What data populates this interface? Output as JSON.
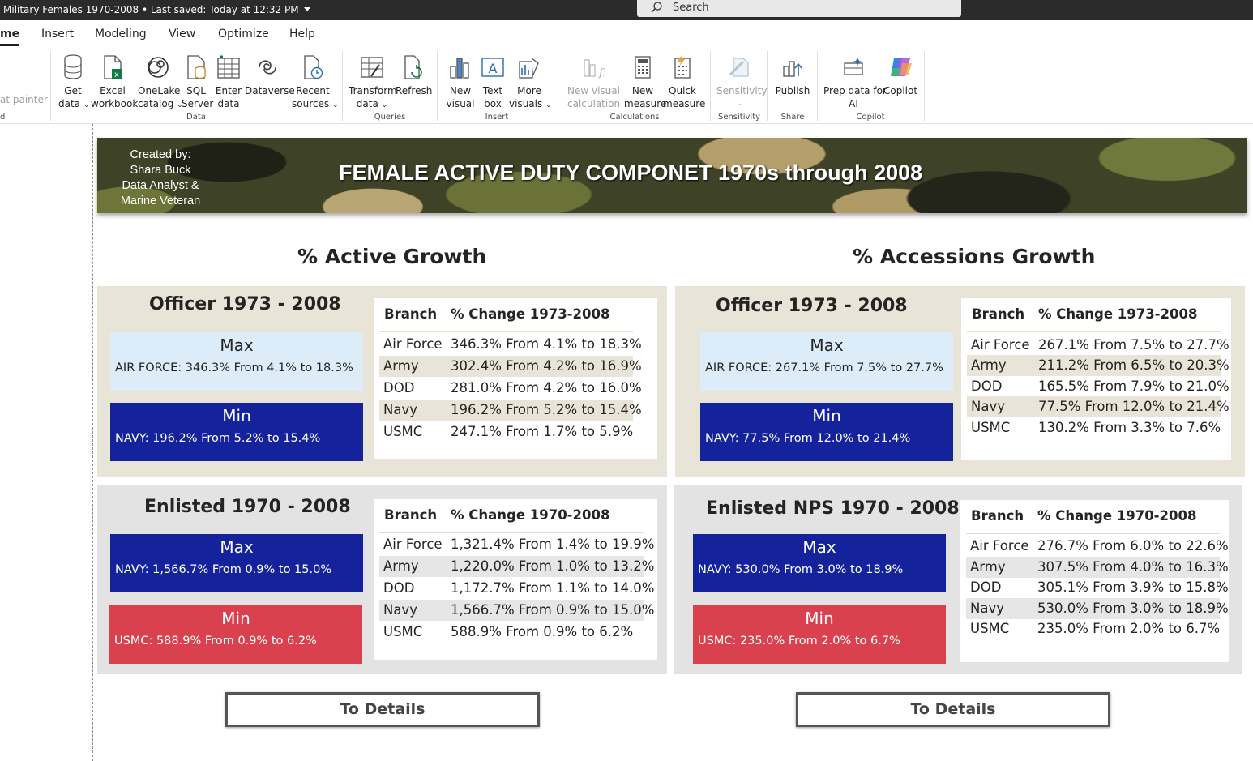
{
  "titlebar": {
    "document": "Military Females 1970-2008 • Last saved: Today at 12:32 PM",
    "search_placeholder": "Search"
  },
  "menu": [
    "me",
    "Insert",
    "Modeling",
    "View",
    "Optimize",
    "Help"
  ],
  "ribbon": {
    "clipped": {
      "label": "at painter",
      "group_fragment": "d"
    },
    "data_buttons": [
      {
        "label1": "Get",
        "label2": "data",
        "dropdown": true
      },
      {
        "label1": "Excel",
        "label2": "workbook",
        "dropdown": false
      },
      {
        "label1": "OneLake",
        "label2": "catalog",
        "dropdown": true
      },
      {
        "label1": "SQL",
        "label2": "Server",
        "dropdown": false
      },
      {
        "label1": "Enter",
        "label2": "data",
        "dropdown": false
      },
      {
        "label1": "Dataverse",
        "label2": "",
        "dropdown": false
      },
      {
        "label1": "Recent",
        "label2": "sources",
        "dropdown": true
      }
    ],
    "groups": {
      "data": "Data",
      "queries": "Queries",
      "insert": "Insert",
      "calculations": "Calculations",
      "sensitivity": "Sensitivity",
      "share": "Share",
      "copilot": "Copilot"
    },
    "queries_buttons": [
      {
        "label1": "Transform",
        "label2": "data",
        "dropdown": true
      },
      {
        "label1": "Refresh",
        "label2": "",
        "dropdown": false
      }
    ],
    "insert_buttons": [
      {
        "label1": "New",
        "label2": "visual",
        "dropdown": false
      },
      {
        "label1": "Text",
        "label2": "box",
        "dropdown": false
      },
      {
        "label1": "More",
        "label2": "visuals",
        "dropdown": true
      }
    ],
    "calc_buttons": [
      {
        "label1": "New visual",
        "label2": "calculation",
        "dropdown": true,
        "disabled": true
      },
      {
        "label1": "New",
        "label2": "measure",
        "dropdown": false
      },
      {
        "label1": "Quick",
        "label2": "measure",
        "dropdown": false
      }
    ],
    "sensitivity_button": {
      "label1": "Sensitivity",
      "label2": ""
    },
    "publish_button": {
      "label1": "Publish"
    },
    "prep_button": {
      "label1": "Prep data for",
      "label2": "AI"
    },
    "copilot_button": {
      "label1": "Copilot"
    }
  },
  "report": {
    "credit": [
      "Created by:",
      "Shara Buck",
      "Data Analyst &",
      "Marine Veteran"
    ],
    "banner_title": "FEMALE ACTIVE DUTY COMPONET  1970s through 2008",
    "active_title": "% Active Growth",
    "accessions_title": "% Accessions Growth",
    "details_label": "To Details",
    "panels": [
      {
        "title": "Officer 1973 - 2008",
        "max_label": "Max",
        "max_value": "AIR FORCE: 346.3% From 4.1% to 18.3%",
        "min_label": "Min",
        "min_value": "NAVY: 196.2% From 5.2% to 15.4%",
        "col_branch": "Branch",
        "col_change": "% Change 1973-2008",
        "rows": [
          {
            "branch": "Air Force",
            "change": "346.3% From 4.1% to 18.3%"
          },
          {
            "branch": "Army",
            "change": "302.4% From 4.2% to 16.9%"
          },
          {
            "branch": "DOD",
            "change": "281.0% From 4.2% to 16.0%"
          },
          {
            "branch": "Navy",
            "change": "196.2% From 5.2% to 15.4%"
          },
          {
            "branch": "USMC",
            "change": "247.1% From 1.7% to 5.9%"
          }
        ]
      },
      {
        "title": "Officer 1973 - 2008",
        "max_label": "Max",
        "max_value": "AIR FORCE: 267.1% From 7.5% to 27.7%",
        "min_label": "Min",
        "min_value": "NAVY: 77.5% From 12.0% to 21.4%",
        "col_branch": "Branch",
        "col_change": "% Change 1973-2008",
        "rows": [
          {
            "branch": "Air Force",
            "change": "267.1% From 7.5% to 27.7%"
          },
          {
            "branch": "Army",
            "change": "211.2% From 6.5% to 20.3%"
          },
          {
            "branch": "DOD",
            "change": "165.5% From 7.9% to 21.0%"
          },
          {
            "branch": "Navy",
            "change": "77.5% From 12.0% to 21.4%"
          },
          {
            "branch": "USMC",
            "change": "130.2% From 3.3% to 7.6%"
          }
        ]
      },
      {
        "title": "Enlisted 1970 - 2008",
        "max_label": "Max",
        "max_value": "NAVY: 1,566.7% From 0.9% to 15.0%",
        "min_label": "Min",
        "min_value": "USMC: 588.9% From 0.9% to 6.2%",
        "col_branch": "Branch",
        "col_change": "% Change 1970-2008",
        "rows": [
          {
            "branch": "Air Force",
            "change": "1,321.4% From 1.4% to 19.9%"
          },
          {
            "branch": "Army",
            "change": "1,220.0% From 1.0% to 13.2%"
          },
          {
            "branch": "DOD",
            "change": "1,172.7% From 1.1% to 14.0%"
          },
          {
            "branch": "Navy",
            "change": "1,566.7% From 0.9% to 15.0%"
          },
          {
            "branch": "USMC",
            "change": "588.9% From 0.9% to 6.2%"
          }
        ]
      },
      {
        "title": "Enlisted NPS 1970 - 2008",
        "max_label": "Max",
        "max_value": "NAVY: 530.0% From 3.0% to 18.9%",
        "min_label": "Min",
        "min_value": "USMC: 235.0% From 2.0% to 6.7%",
        "col_branch": "Branch",
        "col_change": "% Change 1970-2008",
        "rows": [
          {
            "branch": "Air Force",
            "change": "276.7% From 6.0% to 22.6%"
          },
          {
            "branch": "Army",
            "change": "307.5% From 4.0% to 16.3%"
          },
          {
            "branch": "DOD",
            "change": "305.1% From 3.9% to 15.8%"
          },
          {
            "branch": "Navy",
            "change": "530.0% From 3.0% to 18.9%"
          },
          {
            "branch": "USMC",
            "change": "235.0% From 2.0% to 6.7%"
          }
        ]
      }
    ]
  }
}
